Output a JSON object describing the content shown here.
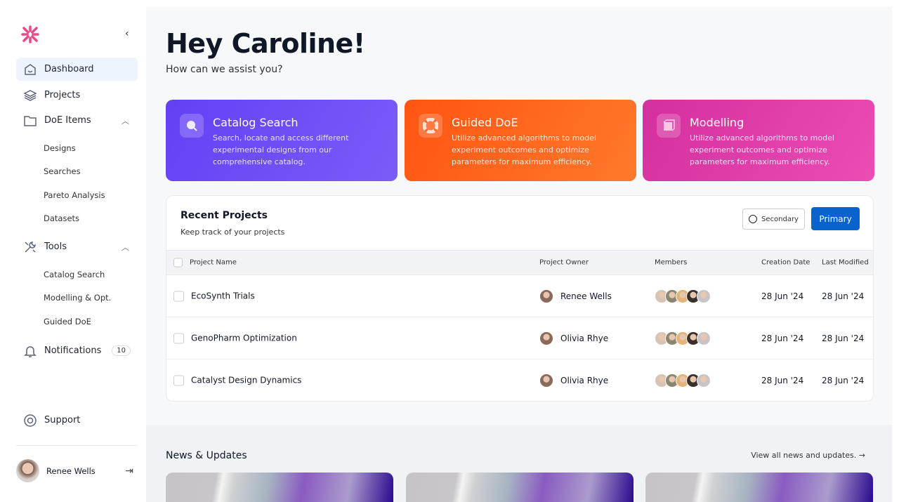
{
  "sidebar": {
    "items": [
      {
        "label": "Dashboard",
        "icon": "home-icon",
        "active": true
      },
      {
        "label": "Projects",
        "icon": "layers-icon"
      },
      {
        "label": "DoE Items",
        "icon": "folder-icon",
        "expanded": true
      },
      {
        "label": "Tools",
        "icon": "tools-icon",
        "expanded": true
      },
      {
        "label": "Notifications",
        "icon": "bell-icon",
        "badge": "10"
      },
      {
        "label": "Support",
        "icon": "lifebuoy-icon"
      }
    ],
    "doe_sub": [
      "Designs",
      "Searches",
      "Pareto Analysis",
      "Datasets"
    ],
    "tools_sub": [
      "Catalog Search",
      "Modelling & Opt.",
      "Guided DoE"
    ],
    "user": {
      "name": "Renee Wells"
    },
    "brand_color": "#e84a8a"
  },
  "header": {
    "greeting": "Hey Caroline!",
    "subtitle": "How can we assist you?"
  },
  "features": [
    {
      "title": "Catalog Search",
      "desc": "Search, locate and access different experimental designs from our comprehensive catalog.",
      "color": "#6b45f5"
    },
    {
      "title": "Guided DoE",
      "desc": "Utilize advanced algorithms to model experiment outcomes and optimize parameters for maximum efficiency.",
      "color": "#ff5a14"
    },
    {
      "title": "Modelling",
      "desc": "Utilize advanced algorithms to model experiment outcomes and optimize parameters for maximum efficiency.",
      "color": "#e03ca6"
    }
  ],
  "projects": {
    "title": "Recent Projects",
    "subtitle": "Keep track of your projects",
    "secondary": "Secondary",
    "primary": "Primary",
    "columns": [
      "Project Name",
      "Project Owner",
      "Members",
      "Creation Date",
      "Last Modified"
    ],
    "rows": [
      {
        "name": "EcoSynth Trials",
        "owner": "Renee Wells",
        "created": "28 Jun '24",
        "modified": "28 Jun '24"
      },
      {
        "name": "GenoPharm Optimization",
        "owner": "Olivia Rhye",
        "created": "28 Jun '24",
        "modified": "28 Jun '24"
      },
      {
        "name": "Catalyst Design Dynamics",
        "owner": "Olivia Rhye",
        "created": "28 Jun '24",
        "modified": "28 Jun '24"
      }
    ]
  },
  "news": {
    "title": "News & Updates",
    "link": "View all news and updates."
  }
}
